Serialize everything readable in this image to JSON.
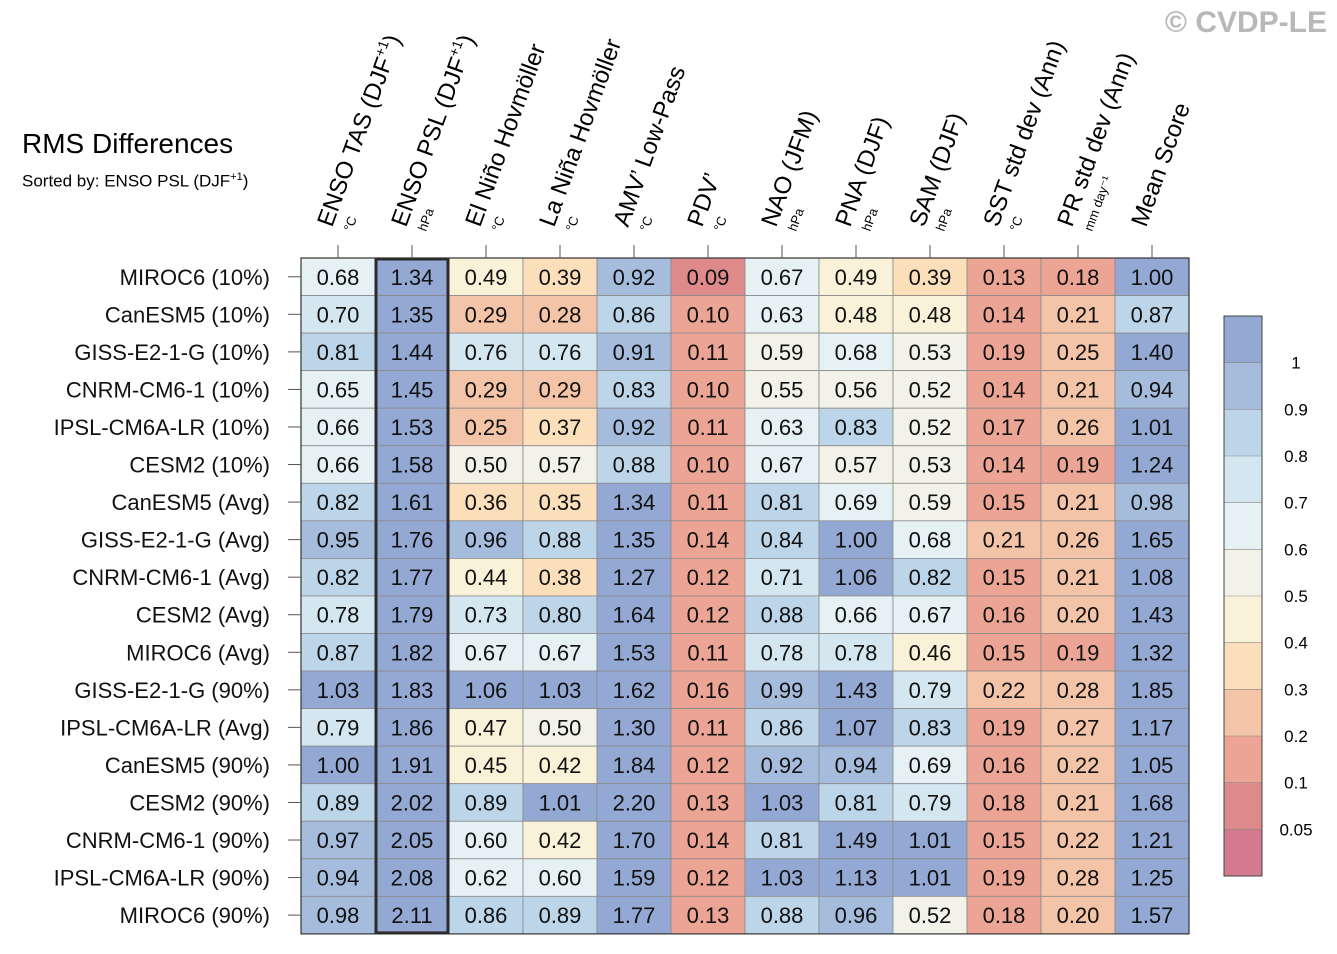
{
  "watermark": "© CVDP-LE",
  "title": "RMS Differences",
  "subtitle": {
    "prefix": "Sorted by: ENSO PSL (DJF",
    "sup": "+1",
    "suffix": ")"
  },
  "chart_data": {
    "type": "heatmap",
    "title": "RMS Differences",
    "sorted_by": "ENSO PSL (DJF+1)",
    "highlighted_column": "ENSO PSL (DJF+1)",
    "columns": [
      {
        "label": "ENSO TAS (DJF",
        "sup": "+1",
        "suffix": ")",
        "unit": "°C"
      },
      {
        "label": "ENSO PSL (DJF",
        "sup": "+1",
        "suffix": ")",
        "unit": "hPa"
      },
      {
        "label": "El Niño Hovmöller",
        "unit": "°C"
      },
      {
        "label": "La Niña Hovmöller",
        "unit": "°C"
      },
      {
        "label": "AMV’ Low-Pass",
        "unit": "°C"
      },
      {
        "label": "PDV’",
        "unit": "°C"
      },
      {
        "label": "NAO (JFM)",
        "unit": "hPa"
      },
      {
        "label": "PNA (DJF)",
        "unit": "hPa"
      },
      {
        "label": "SAM (DJF)",
        "unit": "hPa"
      },
      {
        "label": "SST std dev (Ann)",
        "unit": "°C"
      },
      {
        "label": "PR std dev (Ann)",
        "unit": "mm day⁻¹"
      },
      {
        "label": "Mean Score",
        "unit": ""
      }
    ],
    "rows": [
      "MIROC6 (10%)",
      "CanESM5 (10%)",
      "GISS-E2-1-G (10%)",
      "CNRM-CM6-1 (10%)",
      "IPSL-CM6A-LR (10%)",
      "CESM2 (10%)",
      "CanESM5 (Avg)",
      "GISS-E2-1-G (Avg)",
      "CNRM-CM6-1 (Avg)",
      "CESM2 (Avg)",
      "MIROC6 (Avg)",
      "GISS-E2-1-G (90%)",
      "IPSL-CM6A-LR (Avg)",
      "CanESM5 (90%)",
      "CESM2 (90%)",
      "CNRM-CM6-1 (90%)",
      "IPSL-CM6A-LR (90%)",
      "MIROC6 (90%)"
    ],
    "values": [
      [
        "0.68",
        "1.34",
        "0.49",
        "0.39",
        "0.92",
        "0.09",
        "0.67",
        "0.49",
        "0.39",
        "0.13",
        "0.18",
        "1.00"
      ],
      [
        "0.70",
        "1.35",
        "0.29",
        "0.28",
        "0.86",
        "0.10",
        "0.63",
        "0.48",
        "0.48",
        "0.14",
        "0.21",
        "0.87"
      ],
      [
        "0.81",
        "1.44",
        "0.76",
        "0.76",
        "0.91",
        "0.11",
        "0.59",
        "0.68",
        "0.53",
        "0.19",
        "0.25",
        "1.40"
      ],
      [
        "0.65",
        "1.45",
        "0.29",
        "0.29",
        "0.83",
        "0.10",
        "0.55",
        "0.56",
        "0.52",
        "0.14",
        "0.21",
        "0.94"
      ],
      [
        "0.66",
        "1.53",
        "0.25",
        "0.37",
        "0.92",
        "0.11",
        "0.63",
        "0.83",
        "0.52",
        "0.17",
        "0.26",
        "1.01"
      ],
      [
        "0.66",
        "1.58",
        "0.50",
        "0.57",
        "0.88",
        "0.10",
        "0.67",
        "0.57",
        "0.53",
        "0.14",
        "0.19",
        "1.24"
      ],
      [
        "0.82",
        "1.61",
        "0.36",
        "0.35",
        "1.34",
        "0.11",
        "0.81",
        "0.69",
        "0.59",
        "0.15",
        "0.21",
        "0.98"
      ],
      [
        "0.95",
        "1.76",
        "0.96",
        "0.88",
        "1.35",
        "0.14",
        "0.84",
        "1.00",
        "0.68",
        "0.21",
        "0.26",
        "1.65"
      ],
      [
        "0.82",
        "1.77",
        "0.44",
        "0.38",
        "1.27",
        "0.12",
        "0.71",
        "1.06",
        "0.82",
        "0.15",
        "0.21",
        "1.08"
      ],
      [
        "0.78",
        "1.79",
        "0.73",
        "0.80",
        "1.64",
        "0.12",
        "0.88",
        "0.66",
        "0.67",
        "0.16",
        "0.20",
        "1.43"
      ],
      [
        "0.87",
        "1.82",
        "0.67",
        "0.67",
        "1.53",
        "0.11",
        "0.78",
        "0.78",
        "0.46",
        "0.15",
        "0.19",
        "1.32"
      ],
      [
        "1.03",
        "1.83",
        "1.06",
        "1.03",
        "1.62",
        "0.16",
        "0.99",
        "1.43",
        "0.79",
        "0.22",
        "0.28",
        "1.85"
      ],
      [
        "0.79",
        "1.86",
        "0.47",
        "0.50",
        "1.30",
        "0.11",
        "0.86",
        "1.07",
        "0.83",
        "0.19",
        "0.27",
        "1.17"
      ],
      [
        "1.00",
        "1.91",
        "0.45",
        "0.42",
        "1.84",
        "0.12",
        "0.92",
        "0.94",
        "0.69",
        "0.16",
        "0.22",
        "1.05"
      ],
      [
        "0.89",
        "2.02",
        "0.89",
        "1.01",
        "2.20",
        "0.13",
        "1.03",
        "0.81",
        "0.79",
        "0.18",
        "0.21",
        "1.68"
      ],
      [
        "0.97",
        "2.05",
        "0.60",
        "0.42",
        "1.70",
        "0.14",
        "0.81",
        "1.49",
        "1.01",
        "0.15",
        "0.22",
        "1.21"
      ],
      [
        "0.94",
        "2.08",
        "0.62",
        "0.60",
        "1.59",
        "0.12",
        "1.03",
        "1.13",
        "1.01",
        "0.19",
        "0.28",
        "1.25"
      ],
      [
        "0.98",
        "2.11",
        "0.86",
        "0.89",
        "1.77",
        "0.13",
        "0.88",
        "0.96",
        "0.52",
        "0.18",
        "0.20",
        "1.57"
      ]
    ],
    "colorbar": {
      "labels": [
        "1",
        "0.9",
        "0.8",
        "0.7",
        "0.6",
        "0.5",
        "0.4",
        "0.3",
        "0.2",
        "0.1",
        "0.05"
      ],
      "thresholds": [
        0.05,
        0.1,
        0.2,
        0.3,
        0.4,
        0.5,
        0.6,
        0.7,
        0.8,
        0.9,
        1
      ],
      "colors": [
        "#d47a8e",
        "#de8a8a",
        "#eca594",
        "#f4c4a8",
        "#fadfba",
        "#faf2d8",
        "#f2f2e8",
        "#e6f1f4",
        "#d4e7f0",
        "#bdd5e8",
        "#a6bcdd",
        "#94a8d4"
      ]
    }
  }
}
